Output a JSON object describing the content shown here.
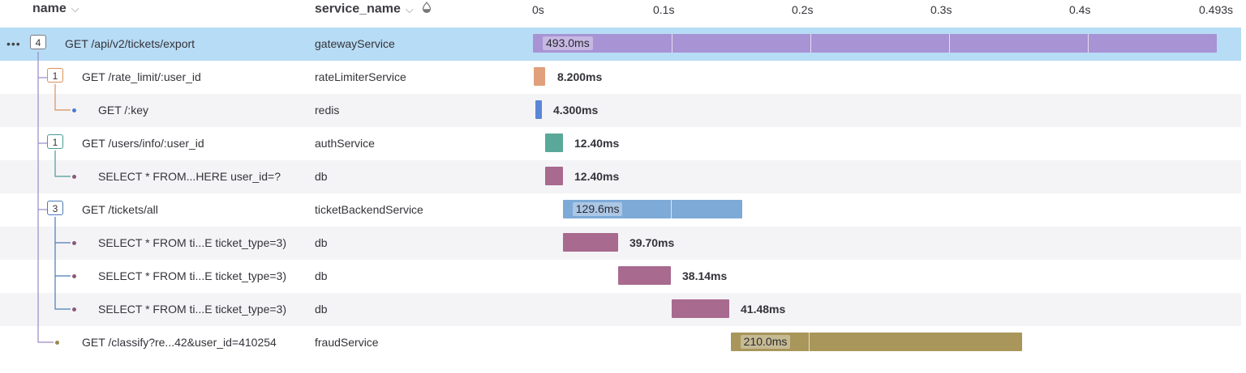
{
  "header": {
    "name_label": "name",
    "service_label": "service_name",
    "ticks": [
      "0s",
      "0.1s",
      "0.2s",
      "0.3s",
      "0.4s",
      "0.493s"
    ]
  },
  "rows": [
    {
      "badge": "4",
      "name": "GET /api/v2/tickets/export",
      "service": "gatewayService",
      "duration": "493.0ms"
    },
    {
      "badge": "1",
      "name": "GET /rate_limit/:user_id",
      "service": "rateLimiterService",
      "duration": "8.200ms"
    },
    {
      "badge": "",
      "name": "GET /:key",
      "service": "redis",
      "duration": "4.300ms"
    },
    {
      "badge": "1",
      "name": "GET /users/info/:user_id",
      "service": "authService",
      "duration": "12.40ms"
    },
    {
      "badge": "",
      "name": "SELECT * FROM...HERE user_id=?",
      "service": "db",
      "duration": "12.40ms"
    },
    {
      "badge": "3",
      "name": "GET /tickets/all",
      "service": "ticketBackendService",
      "duration": "129.6ms"
    },
    {
      "badge": "",
      "name": "SELECT * FROM ti...E ticket_type=3)",
      "service": "db",
      "duration": "39.70ms"
    },
    {
      "badge": "",
      "name": "SELECT * FROM ti...E ticket_type=3)",
      "service": "db",
      "duration": "38.14ms"
    },
    {
      "badge": "",
      "name": "SELECT * FROM ti...E ticket_type=3)",
      "service": "db",
      "duration": "41.48ms"
    },
    {
      "badge": "",
      "name": "GET /classify?re...42&user_id=410254",
      "service": "fraudService",
      "duration": "210.0ms"
    }
  ],
  "spans": [
    {
      "start_ms": 0,
      "dur_ms": 493.0,
      "color": "#a893d4"
    },
    {
      "start_ms": 0.5,
      "dur_ms": 8.2,
      "color": "#e0a07c"
    },
    {
      "start_ms": 2,
      "dur_ms": 4.3,
      "color": "#5a86d8"
    },
    {
      "start_ms": 9,
      "dur_ms": 12.4,
      "color": "#5aa89a"
    },
    {
      "start_ms": 9,
      "dur_ms": 12.4,
      "color": "#a86a8e"
    },
    {
      "start_ms": 21.5,
      "dur_ms": 129.6,
      "color": "#7eaad8"
    },
    {
      "start_ms": 21.5,
      "dur_ms": 39.7,
      "color": "#a86a8e"
    },
    {
      "start_ms": 61.5,
      "dur_ms": 38.14,
      "color": "#a86a8e"
    },
    {
      "start_ms": 100,
      "dur_ms": 41.48,
      "color": "#a86a8e"
    },
    {
      "start_ms": 142.5,
      "dur_ms": 210.0,
      "color": "#a8965a"
    }
  ],
  "colors": {
    "selected_row": "#b7dcf5",
    "alt_row": "#f4f4f6",
    "rate_limit_branch": "#d8915a",
    "users_branch": "#4a9a94",
    "tickets_branch": "#4a7ab8",
    "root_branch": "#9a88c8"
  }
}
